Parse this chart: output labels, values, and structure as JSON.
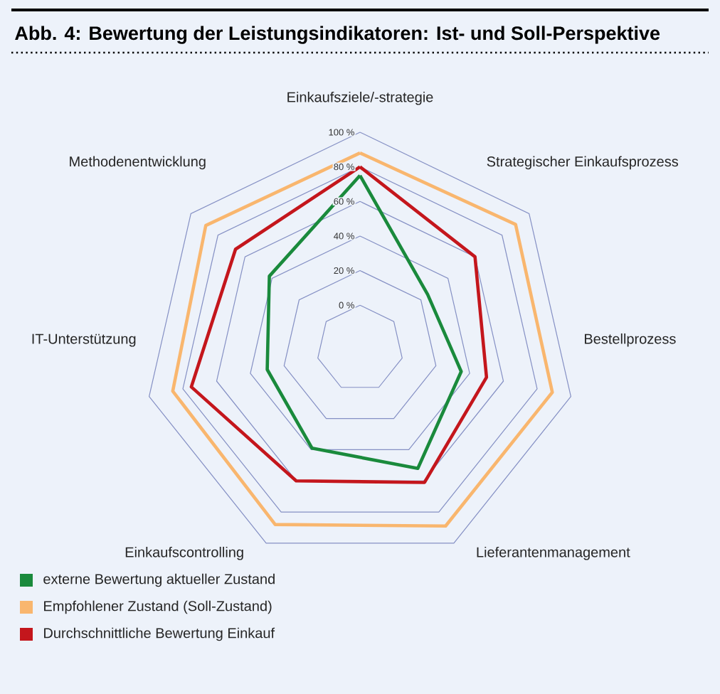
{
  "chart_data": {
    "type": "radar",
    "title": "Abb. 4: Bewertung der Leistungsindikatoren: Ist- und Soll-Perspektive",
    "categories": [
      "Einkaufsziele/-strategie",
      "Strategischer Einkaufsprozess",
      "Bestellprozess",
      "Lieferantenmanagement",
      "Einkaufscontrolling",
      "IT-Unterstützung",
      "Methodenentwicklung"
    ],
    "ylim": [
      -25,
      100
    ],
    "yticks": [
      {
        "value": 0,
        "label": "0 %"
      },
      {
        "value": 20,
        "label": "20 %"
      },
      {
        "value": 40,
        "label": "40 %"
      },
      {
        "value": 60,
        "label": "60 %"
      },
      {
        "value": 80,
        "label": "80 %"
      },
      {
        "value": 100,
        "label": "100 %"
      }
    ],
    "grid": true,
    "legend": "bottom left",
    "series": [
      {
        "name": "externe Bewertung aktueller Zustand",
        "color": "#1a8a3c",
        "values": [
          75,
          25,
          35,
          52,
          39,
          30,
          42
        ]
      },
      {
        "name": "Empfohlener Zustand (Soll-Zustand)",
        "color": "#f9b66e",
        "values": [
          88,
          90,
          89,
          89,
          88,
          86,
          89
        ]
      },
      {
        "name": "Durchschnittliche Bewertung Einkauf",
        "color": "#c4161c",
        "values": [
          80,
          60,
          50,
          61,
          60,
          75,
          67
        ]
      }
    ]
  }
}
